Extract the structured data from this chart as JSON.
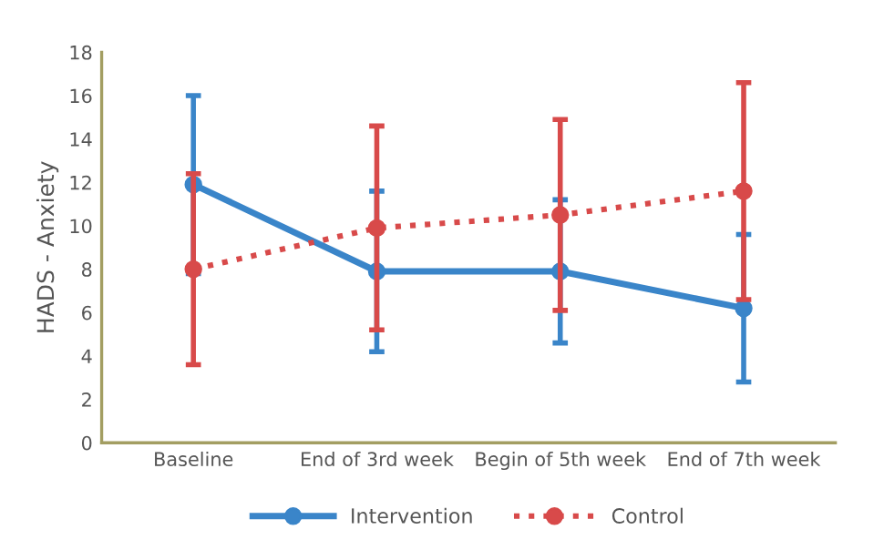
{
  "chart_data": {
    "type": "line",
    "ylabel": "HADS - Anxiety",
    "categories": [
      "Baseline",
      "End of 3rd week",
      "Begin of 5th week",
      "End of 7th week"
    ],
    "series": [
      {
        "name": "Intervention",
        "color": "#3a85c9",
        "values": [
          11.9,
          7.9,
          7.9,
          6.2
        ],
        "errors": [
          4.1,
          3.7,
          3.3,
          3.4
        ],
        "line_style": "solid"
      },
      {
        "name": "Control",
        "color": "#d84a4a",
        "values": [
          8.0,
          9.9,
          10.5,
          11.6
        ],
        "errors": [
          4.4,
          4.7,
          4.4,
          5.0
        ],
        "line_style": "dotted"
      }
    ],
    "ylim": [
      0,
      18
    ],
    "yticks": [
      0,
      2,
      4,
      6,
      8,
      10,
      12,
      14,
      16,
      18
    ],
    "grid": false,
    "legend": "bottom",
    "marker": "circle"
  }
}
